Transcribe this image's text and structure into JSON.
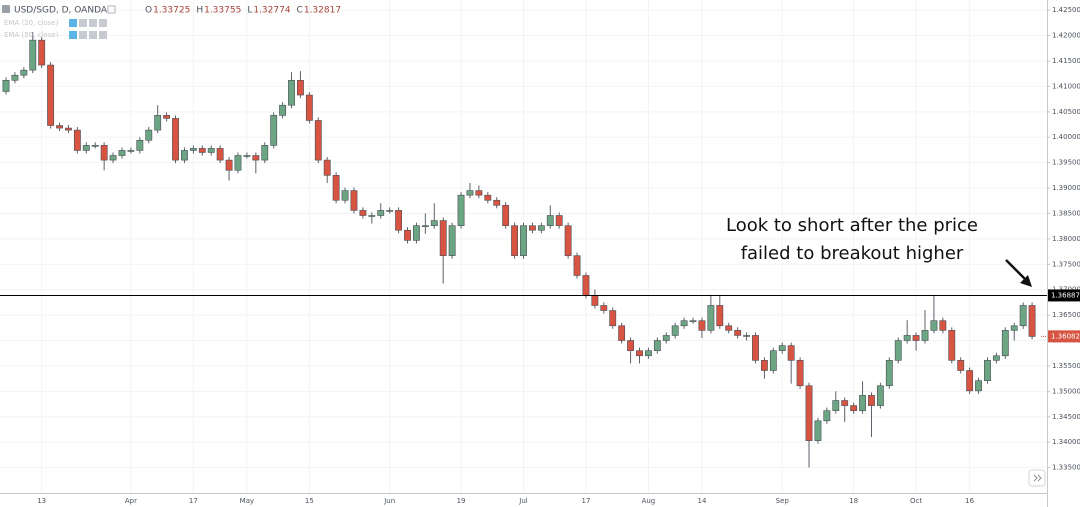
{
  "chart_data": {
    "type": "candlestick",
    "legend": {
      "symbol": "USD/SGD, D, OANDA",
      "ohlc": [
        {
          "label": "O",
          "value": 1.33725
        },
        {
          "label": "H",
          "value": 1.33755
        },
        {
          "label": "L",
          "value": 1.32774
        },
        {
          "label": "C",
          "value": 1.32817
        }
      ],
      "indicators": [
        "EMA (20, close)",
        "EMA (50, close)"
      ]
    },
    "annotation": [
      "Look to short after the price",
      "failed to breakout higher"
    ],
    "hline": 1.36887,
    "last_price": 1.36082,
    "up_color": "#6ba583",
    "down_color": "#d75442",
    "grid": true,
    "ylim": [
      1.33,
      1.427
    ],
    "yticks": [
      {
        "value": 1.425,
        "label": "1.42500"
      },
      {
        "value": 1.42,
        "label": "1.42000"
      },
      {
        "value": 1.415,
        "label": "1.41500"
      },
      {
        "value": 1.41,
        "label": "1.41000"
      },
      {
        "value": 1.405,
        "label": "1.40500"
      },
      {
        "value": 1.4,
        "label": "1.40000"
      },
      {
        "value": 1.395,
        "label": "1.39500"
      },
      {
        "value": 1.39,
        "label": "1.39000"
      },
      {
        "value": 1.385,
        "label": "1.38500"
      },
      {
        "value": 1.38,
        "label": "1.38000"
      },
      {
        "value": 1.375,
        "label": "1.37500"
      },
      {
        "value": 1.37,
        "label": "1.37000"
      },
      {
        "value": 1.365,
        "label": "1.36500"
      },
      {
        "value": 1.36,
        "label": "1.36000"
      },
      {
        "value": 1.355,
        "label": "1.35500"
      },
      {
        "value": 1.35,
        "label": "1.35000"
      },
      {
        "value": 1.345,
        "label": "1.34500"
      },
      {
        "value": 1.34,
        "label": "1.34000"
      },
      {
        "value": 1.335,
        "label": "1.33500"
      }
    ],
    "categories": [
      null,
      null,
      null,
      null,
      "13",
      null,
      null,
      null,
      null,
      null,
      null,
      null,
      null,
      null,
      "Apr",
      null,
      null,
      null,
      null,
      null,
      null,
      "17",
      null,
      null,
      null,
      null,
      null,
      "May",
      null,
      null,
      null,
      null,
      null,
      null,
      "15",
      null,
      null,
      null,
      null,
      null,
      null,
      null,
      null,
      "Jun",
      null,
      null,
      null,
      null,
      null,
      null,
      null,
      "19",
      null,
      null,
      null,
      null,
      null,
      null,
      "Jul",
      null,
      null,
      null,
      null,
      null,
      null,
      "17",
      null,
      null,
      null,
      null,
      null,
      null,
      "Aug",
      null,
      null,
      null,
      null,
      null,
      "14",
      null,
      null,
      null,
      null,
      null,
      null,
      null,
      null,
      "Sep",
      null,
      null,
      null,
      null,
      null,
      null,
      null,
      "18",
      null,
      null,
      null,
      null,
      null,
      null,
      "Oct",
      null,
      null,
      null,
      null,
      null,
      "16",
      null,
      null,
      null,
      null,
      null,
      null,
      null
    ],
    "open": [
      1.409,
      1.4112,
      1.4122,
      1.4132,
      1.4191,
      1.4142,
      1.4023,
      1.4018,
      1.4014,
      1.3974,
      1.3984,
      1.3984,
      1.3955,
      1.3964,
      1.3974,
      1.3974,
      1.3994,
      1.4014,
      1.4043,
      1.4037,
      1.3955,
      1.3974,
      1.3978,
      1.397,
      1.3978,
      1.3955,
      1.3935,
      1.3964,
      1.3964,
      1.3955,
      1.3984,
      1.4043,
      1.4063,
      1.4112,
      1.4083,
      1.4033,
      1.3955,
      1.3925,
      1.3876,
      1.3895,
      1.3856,
      1.3846,
      1.3846,
      1.3856,
      1.3856,
      1.3817,
      1.3797,
      1.3826,
      1.3826,
      1.3836,
      1.3767,
      1.3826,
      1.3886,
      1.3895,
      1.3886,
      1.3876,
      1.3866,
      1.3826,
      1.3767,
      1.3826,
      1.3817,
      1.3826,
      1.3846,
      1.3826,
      1.3767,
      1.3728,
      1.3689,
      1.3669,
      1.3659,
      1.3629,
      1.36,
      1.358,
      1.357,
      1.358,
      1.36,
      1.361,
      1.3629,
      1.3639,
      1.3639,
      1.362,
      1.3669,
      1.3629,
      1.362,
      1.361,
      1.361,
      1.3561,
      1.3541,
      1.358,
      1.359,
      1.3561,
      1.3511,
      1.3403,
      1.3442,
      1.3462,
      1.3482,
      1.3472,
      1.3462,
      1.3492,
      1.3472,
      1.3511,
      1.3561,
      1.36,
      1.361,
      1.36,
      1.362,
      1.3639,
      1.362,
      1.3561,
      1.3541,
      1.3501,
      1.3521,
      1.3561,
      1.357,
      1.362,
      1.3629,
      1.3669
    ],
    "high": [
      1.4118,
      1.4128,
      1.4138,
      1.4207,
      1.4197,
      1.4148,
      1.4029,
      1.4024,
      1.402,
      1.399,
      1.399,
      1.399,
      1.397,
      1.398,
      1.398,
      1.4,
      1.402,
      1.4063,
      1.4049,
      1.4043,
      1.398,
      1.3984,
      1.3984,
      1.3984,
      1.3984,
      1.3961,
      1.397,
      1.397,
      1.397,
      1.399,
      1.4049,
      1.4069,
      1.4128,
      1.413,
      1.4089,
      1.4039,
      1.3961,
      1.3931,
      1.3901,
      1.3901,
      1.3862,
      1.3852,
      1.387,
      1.3862,
      1.3862,
      1.3823,
      1.3832,
      1.385,
      1.387,
      1.3842,
      1.3832,
      1.3892,
      1.391,
      1.3905,
      1.3892,
      1.3882,
      1.3872,
      1.3832,
      1.3832,
      1.3832,
      1.3832,
      1.3866,
      1.3852,
      1.3832,
      1.3773,
      1.3734,
      1.37,
      1.3675,
      1.3665,
      1.3635,
      1.3606,
      1.3586,
      1.3586,
      1.3606,
      1.3616,
      1.3635,
      1.3645,
      1.3645,
      1.3645,
      1.369,
      1.369,
      1.3635,
      1.3626,
      1.3616,
      1.3616,
      1.3567,
      1.3586,
      1.3596,
      1.3596,
      1.3567,
      1.3517,
      1.3448,
      1.3468,
      1.35,
      1.3488,
      1.3478,
      1.352,
      1.3498,
      1.3517,
      1.3567,
      1.3606,
      1.364,
      1.3616,
      1.366,
      1.369,
      1.3645,
      1.3626,
      1.3567,
      1.3547,
      1.3527,
      1.3567,
      1.3576,
      1.3626,
      1.3635,
      1.3675,
      1.3675
    ],
    "low": [
      1.4084,
      1.4106,
      1.4116,
      1.4126,
      1.4136,
      1.4017,
      1.4012,
      1.4008,
      1.3968,
      1.3968,
      1.3978,
      1.3935,
      1.3949,
      1.3958,
      1.3968,
      1.3968,
      1.3988,
      1.4008,
      1.4031,
      1.3949,
      1.3949,
      1.3968,
      1.3964,
      1.3964,
      1.3949,
      1.3915,
      1.3929,
      1.3958,
      1.3929,
      1.3949,
      1.3978,
      1.4037,
      1.4057,
      1.4077,
      1.4027,
      1.3949,
      1.391,
      1.387,
      1.387,
      1.385,
      1.384,
      1.383,
      1.384,
      1.385,
      1.3811,
      1.3791,
      1.3791,
      1.381,
      1.382,
      1.3712,
      1.3761,
      1.382,
      1.388,
      1.388,
      1.387,
      1.386,
      1.382,
      1.3761,
      1.3761,
      1.3811,
      1.3811,
      1.382,
      1.382,
      1.3761,
      1.3722,
      1.3683,
      1.3663,
      1.3653,
      1.3623,
      1.3594,
      1.3555,
      1.3555,
      1.3564,
      1.3574,
      1.3594,
      1.3604,
      1.3623,
      1.3633,
      1.3605,
      1.3614,
      1.3623,
      1.3614,
      1.3604,
      1.36,
      1.3555,
      1.3525,
      1.3535,
      1.3574,
      1.3515,
      1.3505,
      1.335,
      1.3397,
      1.3436,
      1.3456,
      1.344,
      1.3456,
      1.3456,
      1.341,
      1.3466,
      1.3505,
      1.3555,
      1.3594,
      1.358,
      1.3594,
      1.3614,
      1.3614,
      1.3555,
      1.3535,
      1.3495,
      1.3495,
      1.3515,
      1.3555,
      1.3564,
      1.36,
      1.3623,
      1.3602
    ],
    "close": [
      1.4112,
      1.4122,
      1.4132,
      1.4191,
      1.4142,
      1.4023,
      1.4018,
      1.4014,
      1.3974,
      1.3984,
      1.3984,
      1.3955,
      1.3964,
      1.3974,
      1.3974,
      1.3994,
      1.4014,
      1.4043,
      1.4037,
      1.3955,
      1.3974,
      1.3978,
      1.397,
      1.3978,
      1.3955,
      1.3935,
      1.3964,
      1.3964,
      1.3955,
      1.3984,
      1.4043,
      1.4063,
      1.4112,
      1.4083,
      1.4033,
      1.3955,
      1.3925,
      1.3876,
      1.3895,
      1.3856,
      1.3846,
      1.3846,
      1.3856,
      1.3856,
      1.3817,
      1.3797,
      1.3826,
      1.3826,
      1.3836,
      1.3767,
      1.3826,
      1.3886,
      1.3895,
      1.3886,
      1.3876,
      1.3866,
      1.3826,
      1.3767,
      1.3826,
      1.3817,
      1.3826,
      1.3846,
      1.3826,
      1.3767,
      1.3728,
      1.3689,
      1.3669,
      1.3659,
      1.3629,
      1.36,
      1.358,
      1.357,
      1.358,
      1.36,
      1.361,
      1.3629,
      1.3639,
      1.3639,
      1.362,
      1.3669,
      1.3629,
      1.362,
      1.361,
      1.361,
      1.3561,
      1.3541,
      1.358,
      1.359,
      1.3561,
      1.3511,
      1.3403,
      1.3442,
      1.3462,
      1.3482,
      1.3472,
      1.3462,
      1.3492,
      1.3472,
      1.3511,
      1.3561,
      1.36,
      1.361,
      1.36,
      1.362,
      1.3639,
      1.362,
      1.3561,
      1.3541,
      1.3501,
      1.3521,
      1.3561,
      1.357,
      1.362,
      1.3629,
      1.3669,
      1.3608
    ]
  }
}
